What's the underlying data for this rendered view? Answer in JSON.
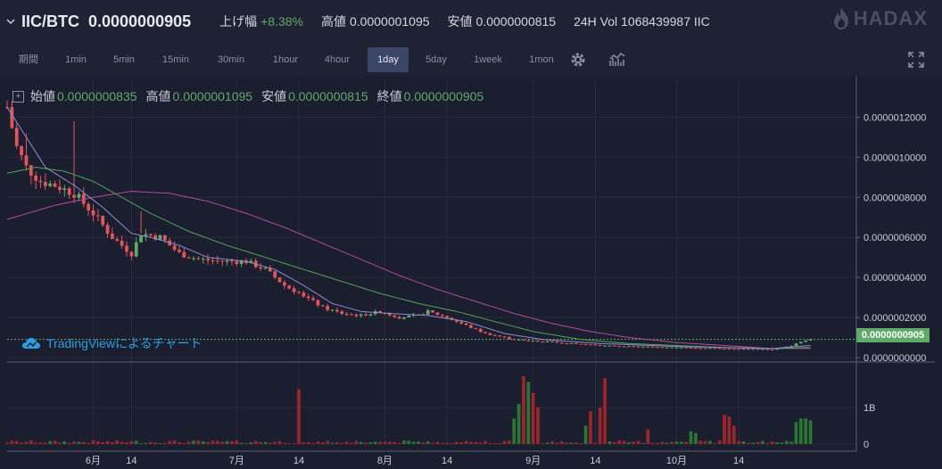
{
  "header": {
    "pair": "IIC/BTC",
    "price": "0.0000000905",
    "change_label": "上げ幅",
    "change_value": "+8.38%",
    "high_label": "高値",
    "high_value": "0.0000001095",
    "low_label": "安値",
    "low_value": "0.0000000815",
    "vol_label": "24H Vol",
    "vol_value": "1068439987 IIC",
    "logo": "HADAX"
  },
  "toolbar": {
    "period_label": "期間",
    "intervals": [
      "1min",
      "5min",
      "15min",
      "30min",
      "1hour",
      "4hour",
      "1day",
      "5day",
      "1week",
      "1mon"
    ],
    "active_interval": "1day"
  },
  "legend": {
    "open_label": "始値",
    "open": "0.0000000835",
    "high_label": "高値",
    "high": "0.0000001095",
    "low_label": "安値",
    "low": "0.0000000815",
    "close_label": "終値",
    "close": "0.0000000905"
  },
  "watermark": "TradingViewによるチャート",
  "price_tag": "0.0000000905",
  "colors": {
    "up": "#5fa96a",
    "down": "#e0575b",
    "ma_short": "#8c8fcf",
    "ma_mid": "#4fa35a",
    "ma_long": "#b24a9c",
    "accent": "#3b4566"
  },
  "chart_data": {
    "type": "candlestick",
    "price_axis_ticks": [
      "0.0000012000",
      "0.0000010000",
      "0.0000008000",
      "0.0000006000",
      "0.0000004000",
      "0.0000002000",
      "0.0000000000"
    ],
    "price_range": [
      0,
      1.34e-06
    ],
    "volume_axis_ticks": [
      "1B",
      "0"
    ],
    "volume_range": [
      0,
      2
    ],
    "x_ticks": [
      {
        "label": "6月",
        "day": 18
      },
      {
        "label": "14",
        "day": 26
      },
      {
        "label": "7月",
        "day": 48
      },
      {
        "label": "14",
        "day": 61
      },
      {
        "label": "8月",
        "day": 79
      },
      {
        "label": "14",
        "day": 92
      },
      {
        "label": "9月",
        "day": 110
      },
      {
        "label": "14",
        "day": 123
      },
      {
        "label": "10月",
        "day": 140
      },
      {
        "label": "14",
        "day": 153
      }
    ],
    "day_range": [
      0,
      172
    ],
    "price_anchors": [
      [
        0,
        1.25
      ],
      [
        2,
        1.05
      ],
      [
        4,
        0.95
      ],
      [
        7,
        0.88
      ],
      [
        10,
        0.86
      ],
      [
        14,
        0.82
      ],
      [
        18,
        0.72
      ],
      [
        22,
        0.6
      ],
      [
        26,
        0.52
      ],
      [
        28,
        0.62
      ],
      [
        32,
        0.6
      ],
      [
        36,
        0.52
      ],
      [
        40,
        0.49
      ],
      [
        45,
        0.48
      ],
      [
        50,
        0.48
      ],
      [
        54,
        0.44
      ],
      [
        58,
        0.36
      ],
      [
        62,
        0.31
      ],
      [
        66,
        0.25
      ],
      [
        70,
        0.22
      ],
      [
        74,
        0.21
      ],
      [
        78,
        0.23
      ],
      [
        82,
        0.2
      ],
      [
        86,
        0.21
      ],
      [
        88,
        0.23
      ],
      [
        92,
        0.2
      ],
      [
        96,
        0.16
      ],
      [
        100,
        0.12
      ],
      [
        106,
        0.09
      ],
      [
        112,
        0.08
      ],
      [
        118,
        0.07
      ],
      [
        124,
        0.06
      ],
      [
        130,
        0.055
      ],
      [
        140,
        0.05
      ],
      [
        150,
        0.045
      ],
      [
        160,
        0.04
      ],
      [
        164,
        0.06
      ],
      [
        166,
        0.08
      ],
      [
        168,
        0.09
      ]
    ],
    "price_unit": 1e-06,
    "ma_short_anchors": [
      [
        0,
        1.25
      ],
      [
        4,
        1.1
      ],
      [
        8,
        0.95
      ],
      [
        14,
        0.86
      ],
      [
        20,
        0.75
      ],
      [
        26,
        0.62
      ],
      [
        30,
        0.6
      ],
      [
        36,
        0.56
      ],
      [
        42,
        0.5
      ],
      [
        50,
        0.48
      ],
      [
        56,
        0.44
      ],
      [
        62,
        0.36
      ],
      [
        68,
        0.27
      ],
      [
        74,
        0.23
      ],
      [
        80,
        0.22
      ],
      [
        88,
        0.21
      ],
      [
        96,
        0.18
      ],
      [
        104,
        0.12
      ],
      [
        112,
        0.09
      ],
      [
        124,
        0.07
      ],
      [
        140,
        0.055
      ],
      [
        160,
        0.045
      ],
      [
        168,
        0.06
      ]
    ],
    "ma_mid_anchors": [
      [
        0,
        0.92
      ],
      [
        6,
        0.95
      ],
      [
        12,
        0.93
      ],
      [
        18,
        0.88
      ],
      [
        24,
        0.8
      ],
      [
        30,
        0.72
      ],
      [
        38,
        0.63
      ],
      [
        46,
        0.56
      ],
      [
        54,
        0.5
      ],
      [
        62,
        0.44
      ],
      [
        70,
        0.38
      ],
      [
        78,
        0.32
      ],
      [
        86,
        0.27
      ],
      [
        94,
        0.23
      ],
      [
        102,
        0.18
      ],
      [
        110,
        0.13
      ],
      [
        120,
        0.09
      ],
      [
        130,
        0.07
      ],
      [
        140,
        0.06
      ],
      [
        150,
        0.05
      ],
      [
        160,
        0.045
      ],
      [
        168,
        0.05
      ]
    ],
    "ma_long_anchors": [
      [
        0,
        0.69
      ],
      [
        10,
        0.76
      ],
      [
        18,
        0.8
      ],
      [
        26,
        0.83
      ],
      [
        34,
        0.82
      ],
      [
        42,
        0.78
      ],
      [
        50,
        0.72
      ],
      [
        58,
        0.65
      ],
      [
        66,
        0.57
      ],
      [
        74,
        0.49
      ],
      [
        82,
        0.41
      ],
      [
        90,
        0.34
      ],
      [
        98,
        0.28
      ],
      [
        106,
        0.22
      ],
      [
        114,
        0.17
      ],
      [
        122,
        0.13
      ],
      [
        130,
        0.1
      ],
      [
        140,
        0.075
      ],
      [
        150,
        0.06
      ],
      [
        160,
        0.045
      ],
      [
        168,
        0.045
      ]
    ],
    "volume_spikes": [
      {
        "day": 61,
        "value": 1.5,
        "dir": "down"
      },
      {
        "day": 107,
        "value": 1.1,
        "dir": "up"
      },
      {
        "day": 108,
        "value": 1.85,
        "dir": "down"
      },
      {
        "day": 109,
        "value": 1.7,
        "dir": "up"
      },
      {
        "day": 110,
        "value": 1.4,
        "dir": "down"
      },
      {
        "day": 111,
        "value": 1.0,
        "dir": "down"
      },
      {
        "day": 106,
        "value": 0.7,
        "dir": "up"
      },
      {
        "day": 125,
        "value": 1.8,
        "dir": "down"
      },
      {
        "day": 124,
        "value": 1.0,
        "dir": "down"
      },
      {
        "day": 122,
        "value": 0.9,
        "dir": "down"
      },
      {
        "day": 121,
        "value": 0.5,
        "dir": "up"
      },
      {
        "day": 134,
        "value": 0.4,
        "dir": "down"
      },
      {
        "day": 143,
        "value": 0.35,
        "dir": "up"
      },
      {
        "day": 144,
        "value": 0.3,
        "dir": "up"
      },
      {
        "day": 150,
        "value": 0.8,
        "dir": "down"
      },
      {
        "day": 151,
        "value": 0.75,
        "dir": "down"
      },
      {
        "day": 152,
        "value": 0.5,
        "dir": "down"
      },
      {
        "day": 165,
        "value": 0.6,
        "dir": "up"
      },
      {
        "day": 166,
        "value": 0.7,
        "dir": "up"
      },
      {
        "day": 167,
        "value": 0.7,
        "dir": "up"
      },
      {
        "day": 168,
        "value": 0.65,
        "dir": "up"
      }
    ]
  }
}
